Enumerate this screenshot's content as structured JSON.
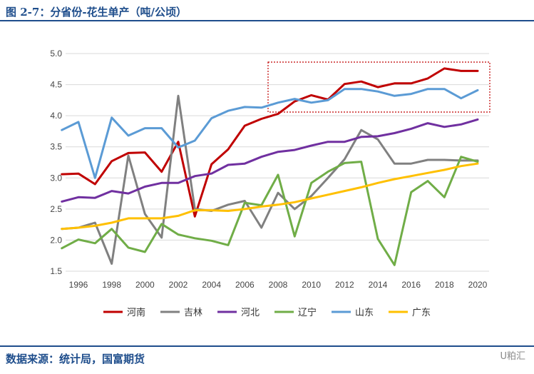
{
  "header": {
    "title": "图 2-7：分省份-花生单产（吨/公顷）"
  },
  "footer": {
    "source": "数据来源：统计局，国富期货",
    "brand": "U粕汇"
  },
  "chart_data": {
    "type": "line",
    "title": "图 2-7：分省份-花生单产（吨/公顷）",
    "xlabel": "",
    "ylabel": "",
    "xlim": [
      1996,
      2020
    ],
    "ylim": [
      1.5,
      5.0
    ],
    "y_ticks": [
      "1.5",
      "2.0",
      "2.5",
      "3.0",
      "3.5",
      "4.0",
      "4.5",
      "5.0"
    ],
    "x_ticks": [
      "1996",
      "1998",
      "2000",
      "2002",
      "2004",
      "2006",
      "2008",
      "2010",
      "2012",
      "2014",
      "2016",
      "2018",
      "2020"
    ],
    "grid": "horizontal",
    "legend_position": "bottom",
    "x": [
      1995,
      1996,
      1997,
      1998,
      1999,
      2000,
      2001,
      2002,
      2003,
      2004,
      2005,
      2006,
      2007,
      2008,
      2009,
      2010,
      2011,
      2012,
      2013,
      2014,
      2015,
      2016,
      2017,
      2018,
      2019,
      2020
    ],
    "series": [
      {
        "name": "河南",
        "color": "#c00000",
        "values": [
          3.06,
          3.07,
          2.9,
          3.27,
          3.4,
          3.41,
          3.1,
          3.58,
          2.38,
          3.22,
          3.46,
          3.84,
          3.95,
          4.03,
          4.23,
          4.33,
          4.26,
          4.51,
          4.55,
          4.46,
          4.52,
          4.52,
          4.6,
          4.76,
          4.72,
          4.72
        ]
      },
      {
        "name": "吉林",
        "color": "#808080",
        "values": [
          2.18,
          2.2,
          2.28,
          1.62,
          3.36,
          2.42,
          2.04,
          4.32,
          2.5,
          2.47,
          2.57,
          2.63,
          2.2,
          2.76,
          2.5,
          2.71,
          3.0,
          3.3,
          3.77,
          3.62,
          3.23,
          3.23,
          3.29,
          3.29,
          3.28,
          3.28
        ]
      },
      {
        "name": "河北",
        "color": "#7030a0",
        "values": [
          2.62,
          2.69,
          2.68,
          2.79,
          2.75,
          2.86,
          2.92,
          2.92,
          3.03,
          3.07,
          3.21,
          3.23,
          3.34,
          3.42,
          3.45,
          3.52,
          3.58,
          3.58,
          3.66,
          3.67,
          3.72,
          3.79,
          3.88,
          3.82,
          3.86,
          3.94
        ]
      },
      {
        "name": "辽宁",
        "color": "#70ad47",
        "values": [
          1.87,
          2.01,
          1.95,
          2.18,
          1.88,
          1.81,
          2.26,
          2.09,
          2.03,
          1.99,
          1.92,
          2.6,
          2.56,
          3.05,
          2.06,
          2.92,
          3.1,
          3.24,
          3.26,
          2.02,
          1.6,
          2.77,
          2.95,
          2.69,
          3.34,
          3.26
        ]
      },
      {
        "name": "山东",
        "color": "#5b9bd5",
        "values": [
          3.77,
          3.9,
          3.0,
          3.97,
          3.68,
          3.8,
          3.8,
          3.49,
          3.6,
          3.96,
          4.08,
          4.14,
          4.13,
          4.21,
          4.27,
          4.21,
          4.25,
          4.43,
          4.43,
          4.39,
          4.32,
          4.35,
          4.43,
          4.43,
          4.28,
          4.41
        ]
      },
      {
        "name": "广东",
        "color": "#ffc000",
        "values": [
          2.18,
          2.2,
          2.23,
          2.28,
          2.35,
          2.35,
          2.35,
          2.39,
          2.48,
          2.48,
          2.47,
          2.5,
          2.54,
          2.57,
          2.61,
          2.67,
          2.73,
          2.79,
          2.85,
          2.92,
          2.98,
          3.03,
          3.08,
          3.13,
          3.19,
          3.23
        ]
      }
    ]
  }
}
